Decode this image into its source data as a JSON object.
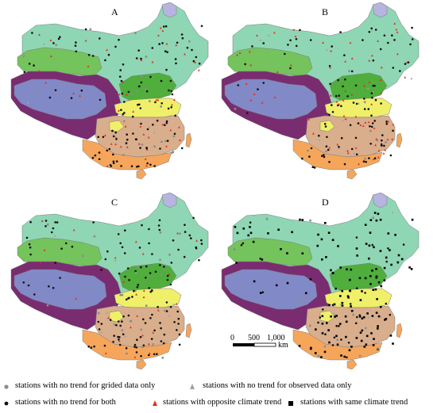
{
  "panels": [
    {
      "label": "A",
      "mix": {
        "gridonly": 10,
        "obsonly": 6,
        "both": 64,
        "opposite": 20,
        "same": 0
      }
    },
    {
      "label": "B",
      "mix": {
        "gridonly": 6,
        "obsonly": 4,
        "both": 58,
        "opposite": 32,
        "same": 0
      }
    },
    {
      "label": "C",
      "mix": {
        "gridonly": 10,
        "obsonly": 6,
        "both": 70,
        "opposite": 14,
        "same": 0
      }
    },
    {
      "label": "D",
      "mix": {
        "gridonly": 4,
        "obsonly": 2,
        "both": 18,
        "opposite": 2,
        "same": 74
      }
    }
  ],
  "scale_bar": {
    "tick_labels": [
      "0",
      "500",
      "1,000"
    ],
    "unit": "km"
  },
  "legend": [
    {
      "key": "gridonly",
      "label": "stations with no trend for grided data only",
      "color": "#8c8c8c"
    },
    {
      "key": "obsonly",
      "label": "stations with no trend for observed data only",
      "color": "#9aa6a0"
    },
    {
      "key": "both",
      "label": "stations with no trend for both",
      "color": "#111111"
    },
    {
      "key": "opposite",
      "label": "stations with opposite climate trend",
      "color": "#e0301e"
    },
    {
      "key": "same",
      "label": "stations with same climate trend",
      "color": "#000000"
    }
  ],
  "region_colors": {
    "northeast": "#8fd6b4",
    "northwest_green": "#74c35c",
    "tibet": "#8289c7",
    "plateau_rim": "#7a2c70",
    "north_china": "#4fae3c",
    "huai": "#f0ef6a",
    "south_central": "#d9ae8c",
    "south_east": "#f5a65b",
    "lake": "#b7b4e0",
    "outline": "#7a7a7a"
  }
}
